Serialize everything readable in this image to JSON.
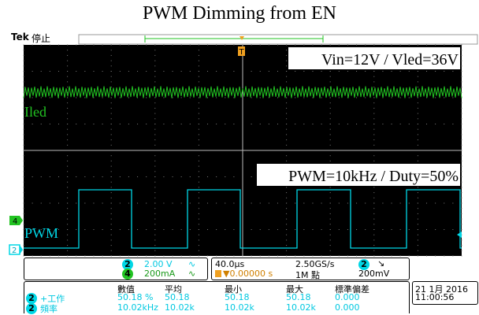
{
  "title": "PWM Dimming from EN",
  "header": {
    "brand": "Tek",
    "run_state": "停止"
  },
  "annotations": {
    "top_right": "Vin=12V / Vled=36V",
    "bottom_right": "PWM=10kHz / Duty=50%",
    "trace1_label": "Iled",
    "trace2_label": "PWM"
  },
  "markers": {
    "trigger_marker": "T",
    "ch4_marker": "4",
    "ch2_marker": "2"
  },
  "colors": {
    "screen_bg": "#000000",
    "grid": "#7a7a7a",
    "ch4_trace": "#22c322",
    "ch2_trace": "#00d7e6",
    "trigger": "#f0a020"
  },
  "settings": {
    "ch2": {
      "badge": "2",
      "scale": "2.00 V",
      "coupling": "∿"
    },
    "ch4": {
      "badge": "4",
      "scale": "200mA",
      "coupling": "∿"
    },
    "timebase": "40.0µs",
    "trigger_pos": "▼0.00000 s",
    "sample_rate": "2.50GS/s",
    "record_length": "1M 點",
    "trig_ch": {
      "badge": "2",
      "slope": "↘",
      "level": "200mV"
    }
  },
  "measurements": {
    "headers": [
      "數值",
      "平均",
      "最小",
      "最大",
      "標準偏差"
    ],
    "rows": [
      {
        "badge": "2",
        "name": "+工作",
        "values": [
          "50.18 %",
          "50.18",
          "50.18",
          "50.18",
          "0.000"
        ]
      },
      {
        "badge": "2",
        "name": "頻率",
        "values": [
          "10.02kHz",
          "10.02k",
          "10.02k",
          "10.02k",
          "0.000"
        ]
      }
    ]
  },
  "datetime": {
    "date": "21 1月  2016",
    "time": "11:00:56"
  }
}
